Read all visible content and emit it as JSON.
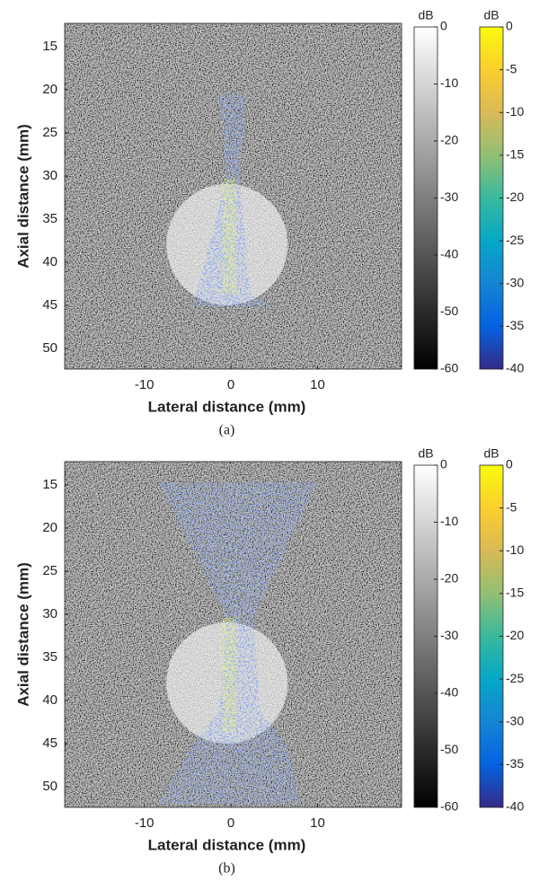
{
  "chart_data": [
    {
      "type": "image",
      "xlabel": "Lateral distance (mm)",
      "ylabel": "Axial distance (mm)",
      "xlim": [
        -19.2,
        19.7
      ],
      "xticks": [
        -10,
        0,
        10
      ],
      "ylim": [
        12.3,
        52.4
      ],
      "yticks": [
        15,
        20,
        25,
        30,
        35,
        40,
        45,
        50
      ],
      "y_reversed": true,
      "colorbars": [
        {
          "label": "dB",
          "colormap": "gray",
          "lim": [
            -60,
            0
          ],
          "ticks": [
            0,
            -10,
            -20,
            -30,
            -40,
            -50,
            -60
          ]
        },
        {
          "label": "dB",
          "colormap": "parula",
          "lim": [
            -40,
            0
          ],
          "ticks": [
            0,
            -5,
            -10,
            -15,
            -20,
            -25,
            -30,
            -35,
            -40
          ]
        }
      ],
      "caption": "(a)"
    },
    {
      "type": "image",
      "xlabel": "Lateral distance (mm)",
      "ylabel": "Axial distance (mm)",
      "xlim": [
        -19.2,
        19.7
      ],
      "xticks": [
        -10,
        0,
        10
      ],
      "ylim": [
        12.3,
        52.4
      ],
      "yticks": [
        15,
        20,
        25,
        30,
        35,
        40,
        45,
        50
      ],
      "y_reversed": true,
      "colorbars": [
        {
          "label": "dB",
          "colormap": "gray",
          "lim": [
            -60,
            0
          ],
          "ticks": [
            0,
            -10,
            -20,
            -30,
            -40,
            -50,
            -60
          ]
        },
        {
          "label": "dB",
          "colormap": "parula",
          "lim": [
            -40,
            0
          ],
          "ticks": [
            0,
            -5,
            -10,
            -15,
            -20,
            -25,
            -30,
            -35,
            -40
          ]
        }
      ],
      "caption": "(b)"
    }
  ]
}
